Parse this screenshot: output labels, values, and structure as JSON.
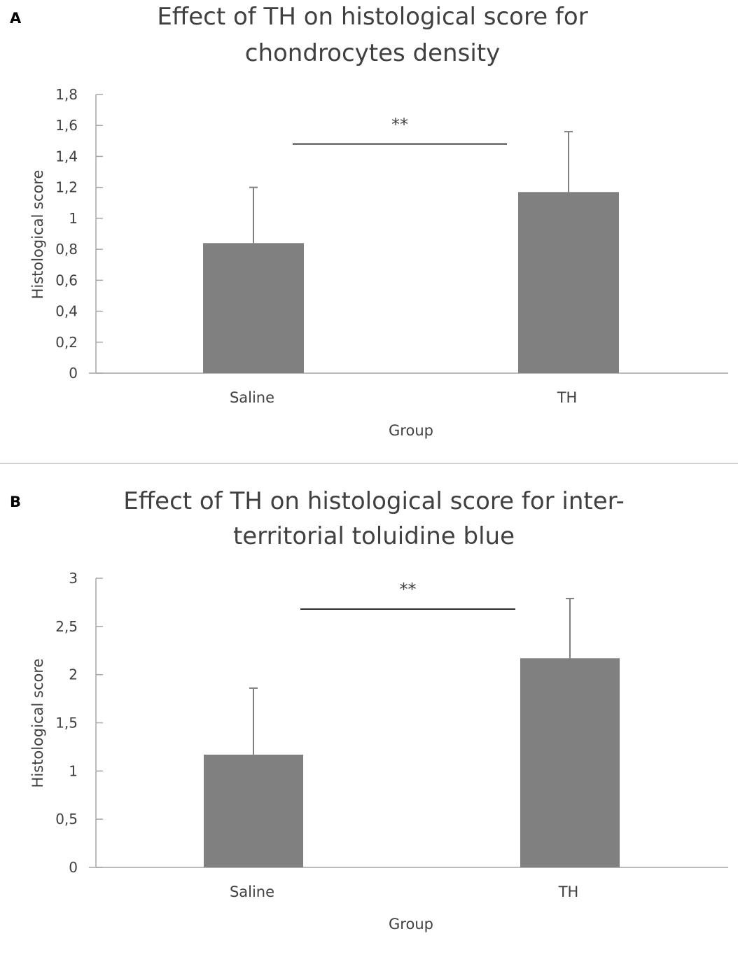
{
  "chart_data": [
    {
      "type": "bar",
      "panel_label": "A",
      "title_lines": [
        "Effect of TH on histological score for",
        "chondrocytes density"
      ],
      "xlabel": "Group",
      "ylabel": "Histological score",
      "ylim": [
        0,
        1.8
      ],
      "yticks": [
        0,
        0.2,
        0.4,
        0.6,
        0.8,
        1.0,
        1.2,
        1.4,
        1.6,
        1.8
      ],
      "ytick_labels": [
        "0",
        "0,2",
        "0,4",
        "0,6",
        "0,8",
        "1",
        "1,2",
        "1,4",
        "1,6",
        "1,8"
      ],
      "categories": [
        "Saline",
        "TH"
      ],
      "values": [
        0.84,
        1.17
      ],
      "error_upper": [
        1.2,
        1.56
      ],
      "significance": {
        "label": "**",
        "level": 1.48,
        "from": "Saline",
        "to": "TH"
      },
      "grid": false,
      "legend": "none",
      "bar_color": "#808080",
      "axis_color": "#a6a6a6"
    },
    {
      "type": "bar",
      "panel_label": "B",
      "title_lines": [
        "Effect of TH on histological score for inter-",
        "territorial toluidine blue"
      ],
      "xlabel": "Group",
      "ylabel": "Histological score",
      "ylim": [
        0,
        3
      ],
      "yticks": [
        0,
        0.5,
        1,
        1.5,
        2,
        2.5,
        3
      ],
      "ytick_labels": [
        "0",
        "0,5",
        "1",
        "1,5",
        "2",
        "2,5",
        "3"
      ],
      "categories": [
        "Saline",
        "TH"
      ],
      "values": [
        1.17,
        2.17
      ],
      "error_upper": [
        1.86,
        2.79
      ],
      "significance": {
        "label": "**",
        "level": 2.68,
        "from": "Saline",
        "to": "TH"
      },
      "grid": false,
      "legend": "none",
      "bar_color": "#808080",
      "axis_color": "#a6a6a6"
    }
  ],
  "colors": {
    "bar": "#808080",
    "axis": "#a6a6a6",
    "text": "#404040",
    "divider": "#d0d0d0"
  }
}
